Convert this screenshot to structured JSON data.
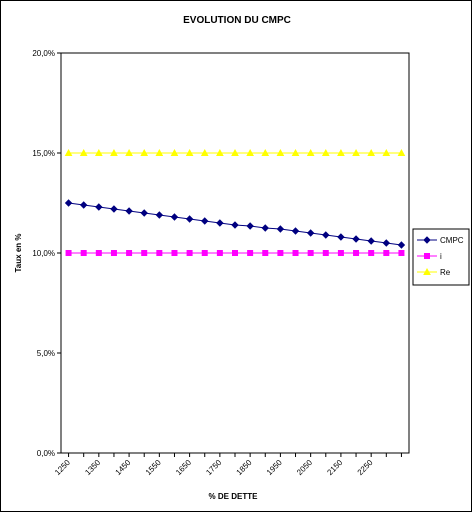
{
  "chart_data": {
    "type": "line",
    "title": "EVOLUTION DU CMPC",
    "xlabel": "% DE DETTE",
    "ylabel": "Taux en %",
    "ylim": [
      0,
      20
    ],
    "y_ticks": [
      "0,0%",
      "5,0%",
      "10,0%",
      "15,0%",
      "20,0%"
    ],
    "y_tick_values": [
      0,
      5,
      10,
      15,
      20
    ],
    "x_tick_labels": [
      "1250",
      "1350",
      "1450",
      "1550",
      "1650",
      "1750",
      "1850",
      "1950",
      "2050",
      "2150",
      "2250"
    ],
    "x": [
      1250,
      1300,
      1350,
      1400,
      1450,
      1500,
      1550,
      1600,
      1650,
      1700,
      1750,
      1800,
      1850,
      1900,
      1950,
      2000,
      2050,
      2100,
      2150,
      2200,
      2250,
      2300,
      2350
    ],
    "xlim": [
      1225,
      2375
    ],
    "grid": false,
    "legend_position": "right",
    "series": [
      {
        "name": "CMPC",
        "color": "#000080",
        "marker": "diamond",
        "values": [
          12.5,
          12.4,
          12.3,
          12.2,
          12.1,
          12.0,
          11.9,
          11.8,
          11.7,
          11.6,
          11.5,
          11.4,
          11.35,
          11.25,
          11.2,
          11.1,
          11.0,
          10.9,
          10.8,
          10.7,
          10.6,
          10.5,
          10.4
        ]
      },
      {
        "name": "i",
        "color": "#ff00ff",
        "marker": "square",
        "values": [
          10,
          10,
          10,
          10,
          10,
          10,
          10,
          10,
          10,
          10,
          10,
          10,
          10,
          10,
          10,
          10,
          10,
          10,
          10,
          10,
          10,
          10,
          10
        ]
      },
      {
        "name": "Re",
        "color": "#ffff00",
        "marker": "triangle",
        "values": [
          15,
          15,
          15,
          15,
          15,
          15,
          15,
          15,
          15,
          15,
          15,
          15,
          15,
          15,
          15,
          15,
          15,
          15,
          15,
          15,
          15,
          15,
          15
        ]
      }
    ]
  }
}
